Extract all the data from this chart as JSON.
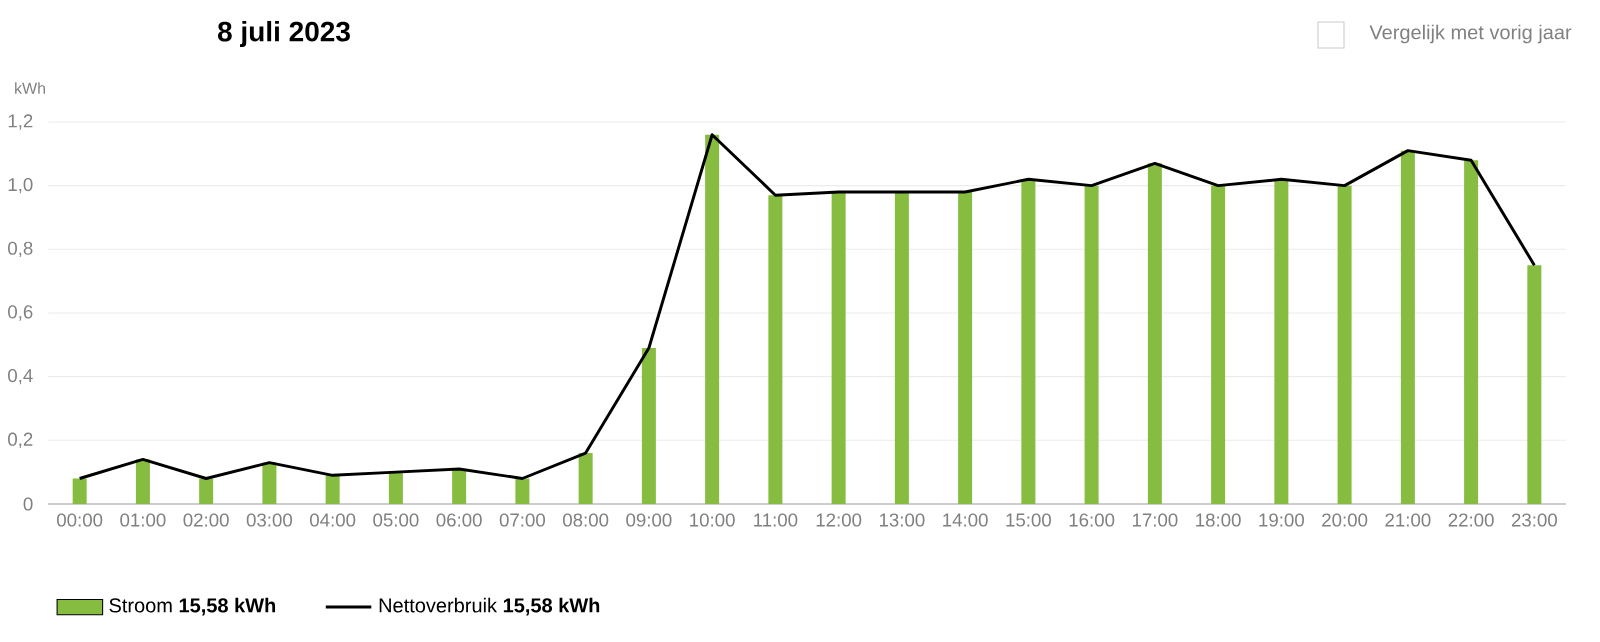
{
  "chart_data": {
    "type": "bar",
    "title": "8 juli 2023",
    "ylabel": "kWh",
    "annotations": [
      "Vergelijk met vorig jaar"
    ],
    "categories": [
      "00:00",
      "01:00",
      "02:00",
      "03:00",
      "04:00",
      "05:00",
      "06:00",
      "07:00",
      "08:00",
      "09:00",
      "10:00",
      "11:00",
      "12:00",
      "13:00",
      "14:00",
      "15:00",
      "16:00",
      "17:00",
      "18:00",
      "19:00",
      "20:00",
      "21:00",
      "22:00",
      "23:00"
    ],
    "series": [
      {
        "name": "Stroom  **15,58 kWh**",
        "type": "bar",
        "color": "#86bc40",
        "values": [
          0.08,
          0.14,
          0.08,
          0.13,
          0.09,
          0.1,
          0.11,
          0.08,
          0.16,
          0.49,
          1.16,
          0.97,
          0.98,
          0.98,
          0.98,
          1.02,
          1.0,
          1.07,
          1.0,
          1.02,
          1.0,
          1.11,
          1.08,
          0.75
        ]
      },
      {
        "name": "Nettoverbruik  **15,58 kWh**",
        "type": "line",
        "color": "#000000",
        "values": [
          0.08,
          0.14,
          0.08,
          0.13,
          0.09,
          0.1,
          0.11,
          0.08,
          0.16,
          0.49,
          1.16,
          0.97,
          0.98,
          0.98,
          0.98,
          1.02,
          1.0,
          1.07,
          1.0,
          1.02,
          1.0,
          1.11,
          1.08,
          0.75
        ]
      }
    ],
    "ylim": [
      0,
      1.2
    ],
    "yticks": [
      0,
      {
        "value": 0.2,
        "label": "0,2"
      },
      {
        "value": 0.4,
        "label": "0,4"
      },
      {
        "value": 0.6,
        "label": "0,6"
      },
      {
        "value": 0.8,
        "label": "0,8"
      },
      {
        "value": 1.0,
        "label": "1,0"
      },
      {
        "value": 1.2,
        "label": "1,2"
      }
    ],
    "grid": "y",
    "legend": "bottom left",
    "marker": "none",
    "line_style": "solid"
  }
}
